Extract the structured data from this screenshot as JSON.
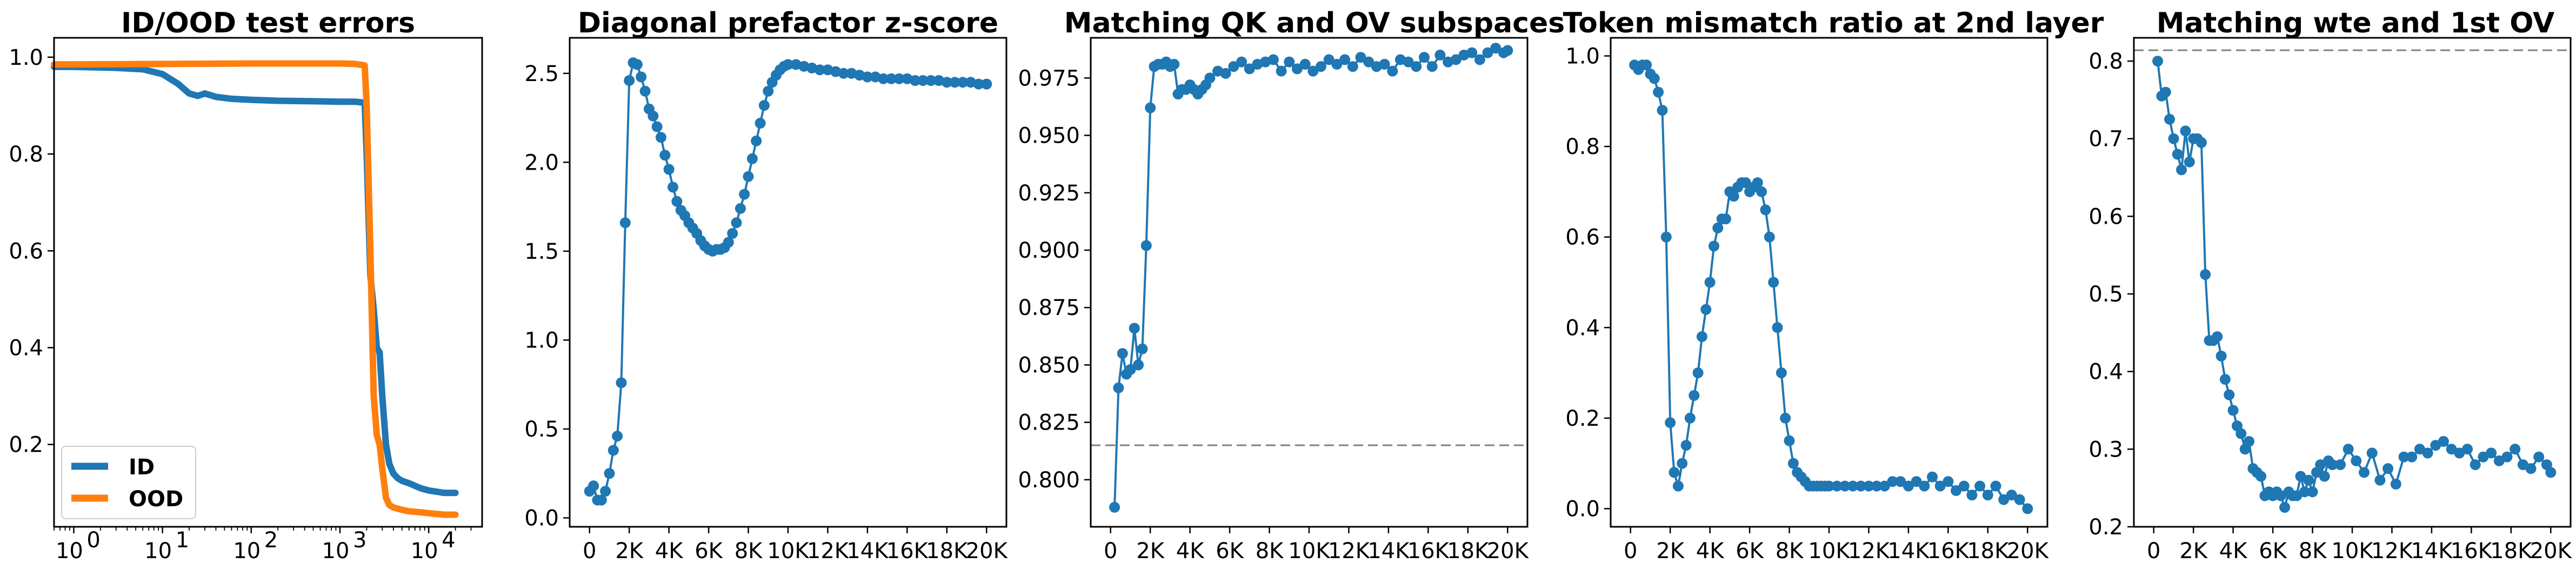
{
  "colors": {
    "blue": "#1f77b4",
    "orange": "#ff7f0e",
    "reference_line": "#808080"
  },
  "chart_data": [
    {
      "type": "line",
      "title": "ID/OOD test errors",
      "xscale": "log",
      "xlim": [
        0.6,
        40000
      ],
      "ylim": [
        0.03,
        1.04
      ],
      "xticks": [
        1,
        10,
        100,
        1000,
        10000
      ],
      "xtick_labels": [
        {
          "base": "10",
          "exp": "0"
        },
        {
          "base": "10",
          "exp": "1"
        },
        {
          "base": "10",
          "exp": "2"
        },
        {
          "base": "10",
          "exp": "3"
        },
        {
          "base": "10",
          "exp": "4"
        }
      ],
      "yticks": [
        0.2,
        0.4,
        0.6,
        0.8,
        1.0
      ],
      "ytick_labels": [
        "0.2",
        "0.4",
        "0.6",
        "0.8",
        "1.0"
      ],
      "legend": {
        "placement": "lower-left"
      },
      "series": [
        {
          "name": "ID",
          "color": "#1f77b4",
          "x": [
            0.6,
            1,
            3,
            6,
            10,
            15,
            20,
            25,
            30,
            40,
            60,
            100,
            200,
            500,
            1000,
            1500,
            1900,
            2000,
            2200,
            2400,
            2600,
            2800,
            3000,
            3300,
            3600,
            4000,
            4500,
            5000,
            6000,
            8000,
            10000,
            15000,
            20000
          ],
          "y": [
            0.98,
            0.98,
            0.978,
            0.975,
            0.965,
            0.945,
            0.925,
            0.92,
            0.925,
            0.918,
            0.914,
            0.912,
            0.91,
            0.909,
            0.908,
            0.908,
            0.906,
            0.8,
            0.55,
            0.48,
            0.4,
            0.39,
            0.3,
            0.2,
            0.16,
            0.14,
            0.13,
            0.125,
            0.12,
            0.11,
            0.105,
            0.1,
            0.1
          ]
        },
        {
          "name": "OOD",
          "color": "#ff7f0e",
          "x": [
            0.6,
            1,
            10,
            100,
            500,
            1000,
            1500,
            1900,
            2000,
            2200,
            2400,
            2600,
            2800,
            3000,
            3300,
            3600,
            4000,
            5000,
            6000,
            8000,
            10000,
            15000,
            20000
          ],
          "y": [
            0.985,
            0.985,
            0.986,
            0.987,
            0.987,
            0.987,
            0.986,
            0.983,
            0.9,
            0.6,
            0.3,
            0.22,
            0.2,
            0.15,
            0.09,
            0.075,
            0.07,
            0.065,
            0.062,
            0.06,
            0.058,
            0.055,
            0.055
          ]
        }
      ]
    },
    {
      "type": "line",
      "title": "Diagonal prefactor z-score",
      "xlim": [
        -1000,
        21000
      ],
      "ylim": [
        -0.05,
        2.7
      ],
      "xticks": [
        0,
        2000,
        4000,
        6000,
        8000,
        10000,
        12000,
        14000,
        16000,
        18000,
        20000
      ],
      "xtick_labels": [
        "0",
        "2K",
        "4K",
        "6K",
        "8K",
        "10K",
        "12K",
        "14K",
        "16K",
        "18K",
        "20K"
      ],
      "yticks": [
        0.0,
        0.5,
        1.0,
        1.5,
        2.0,
        2.5
      ],
      "ytick_labels": [
        "0.0",
        "0.5",
        "1.0",
        "1.5",
        "2.0",
        "2.5"
      ],
      "series": [
        {
          "color": "#1f77b4",
          "x": [
            0,
            200,
            400,
            600,
            800,
            1000,
            1200,
            1400,
            1600,
            1800,
            2000,
            2200,
            2400,
            2600,
            2800,
            3000,
            3200,
            3400,
            3600,
            3800,
            4000,
            4200,
            4400,
            4600,
            4800,
            5000,
            5200,
            5400,
            5600,
            5800,
            6000,
            6200,
            6400,
            6600,
            6800,
            7000,
            7200,
            7400,
            7600,
            7800,
            8000,
            8200,
            8400,
            8600,
            8800,
            9000,
            9200,
            9400,
            9600,
            9800,
            10000,
            10400,
            10800,
            11200,
            11600,
            12000,
            12400,
            12800,
            13200,
            13600,
            14000,
            14400,
            14800,
            15200,
            15600,
            16000,
            16400,
            16800,
            17200,
            17600,
            18000,
            18400,
            18800,
            19200,
            19600,
            20000
          ],
          "y": [
            0.15,
            0.18,
            0.1,
            0.1,
            0.15,
            0.25,
            0.38,
            0.46,
            0.76,
            1.66,
            2.46,
            2.56,
            2.55,
            2.48,
            2.4,
            2.3,
            2.26,
            2.2,
            2.14,
            2.04,
            1.96,
            1.86,
            1.78,
            1.73,
            1.7,
            1.66,
            1.63,
            1.6,
            1.56,
            1.53,
            1.51,
            1.5,
            1.51,
            1.51,
            1.52,
            1.55,
            1.6,
            1.66,
            1.74,
            1.82,
            1.92,
            2.02,
            2.12,
            2.22,
            2.32,
            2.4,
            2.45,
            2.49,
            2.52,
            2.54,
            2.55,
            2.55,
            2.54,
            2.53,
            2.52,
            2.52,
            2.51,
            2.5,
            2.5,
            2.49,
            2.48,
            2.48,
            2.47,
            2.47,
            2.47,
            2.47,
            2.46,
            2.46,
            2.46,
            2.46,
            2.45,
            2.45,
            2.45,
            2.45,
            2.44,
            2.44
          ]
        }
      ]
    },
    {
      "type": "line",
      "title": "Matching QK and OV subspaces",
      "xlim": [
        -1000,
        21000
      ],
      "ylim": [
        0.7795,
        0.9925
      ],
      "xticks": [
        0,
        2000,
        4000,
        6000,
        8000,
        10000,
        12000,
        14000,
        16000,
        18000,
        20000
      ],
      "xtick_labels": [
        "0",
        "2K",
        "4K",
        "6K",
        "8K",
        "10K",
        "12K",
        "14K",
        "16K",
        "18K",
        "20K"
      ],
      "yticks": [
        0.8,
        0.825,
        0.85,
        0.875,
        0.9,
        0.925,
        0.95,
        0.975
      ],
      "ytick_labels": [
        "0.800",
        "0.825",
        "0.850",
        "0.875",
        "0.900",
        "0.925",
        "0.950",
        "0.975"
      ],
      "reference_line": {
        "y": 0.815,
        "style": "dashed"
      },
      "series": [
        {
          "color": "#1f77b4",
          "x": [
            200,
            400,
            600,
            800,
            1000,
            1200,
            1400,
            1600,
            1800,
            2000,
            2200,
            2400,
            2600,
            2800,
            3000,
            3200,
            3400,
            3600,
            3800,
            4000,
            4200,
            4400,
            4600,
            4800,
            5000,
            5400,
            5800,
            6200,
            6600,
            7000,
            7400,
            7800,
            8200,
            8600,
            9000,
            9400,
            9800,
            10200,
            10600,
            11000,
            11400,
            11800,
            12200,
            12600,
            13000,
            13400,
            13800,
            14200,
            14600,
            15000,
            15400,
            15800,
            16200,
            16600,
            17000,
            17400,
            17800,
            18200,
            18600,
            19000,
            19400,
            19800,
            20000
          ],
          "y": [
            0.788,
            0.84,
            0.855,
            0.846,
            0.848,
            0.866,
            0.85,
            0.857,
            0.902,
            0.962,
            0.98,
            0.981,
            0.981,
            0.982,
            0.98,
            0.981,
            0.968,
            0.97,
            0.97,
            0.972,
            0.97,
            0.968,
            0.97,
            0.972,
            0.975,
            0.978,
            0.977,
            0.98,
            0.982,
            0.979,
            0.981,
            0.982,
            0.983,
            0.978,
            0.982,
            0.979,
            0.981,
            0.978,
            0.98,
            0.983,
            0.981,
            0.983,
            0.98,
            0.984,
            0.982,
            0.98,
            0.981,
            0.978,
            0.983,
            0.982,
            0.98,
            0.984,
            0.98,
            0.985,
            0.982,
            0.983,
            0.985,
            0.986,
            0.983,
            0.986,
            0.988,
            0.986,
            0.987
          ]
        }
      ]
    },
    {
      "type": "line",
      "title": "Token mismatch ratio at 2nd layer",
      "xlim": [
        -1000,
        21000
      ],
      "ylim": [
        -0.04,
        1.04
      ],
      "xticks": [
        0,
        2000,
        4000,
        6000,
        8000,
        10000,
        12000,
        14000,
        16000,
        18000,
        20000
      ],
      "xtick_labels": [
        "0",
        "2K",
        "4K",
        "6K",
        "8K",
        "10K",
        "12K",
        "14K",
        "16K",
        "18K",
        "20K"
      ],
      "yticks": [
        0.0,
        0.2,
        0.4,
        0.6,
        0.8,
        1.0
      ],
      "ytick_labels": [
        "0.0",
        "0.2",
        "0.4",
        "0.6",
        "0.8",
        "1.0"
      ],
      "series": [
        {
          "color": "#1f77b4",
          "x": [
            200,
            400,
            600,
            800,
            1000,
            1200,
            1400,
            1600,
            1800,
            2000,
            2200,
            2400,
            2600,
            2800,
            3000,
            3200,
            3400,
            3600,
            3800,
            4000,
            4200,
            4400,
            4600,
            4800,
            5000,
            5200,
            5400,
            5600,
            5800,
            6000,
            6200,
            6400,
            6600,
            6800,
            7000,
            7200,
            7400,
            7600,
            7800,
            8000,
            8200,
            8400,
            8600,
            8800,
            9000,
            9200,
            9400,
            9600,
            9800,
            10000,
            10400,
            10800,
            11200,
            11600,
            12000,
            12400,
            12800,
            13200,
            13600,
            14000,
            14400,
            14800,
            15200,
            15600,
            16000,
            16400,
            16800,
            17200,
            17600,
            18000,
            18400,
            18800,
            19200,
            19600,
            20000
          ],
          "y": [
            0.98,
            0.97,
            0.98,
            0.98,
            0.96,
            0.95,
            0.92,
            0.88,
            0.6,
            0.19,
            0.08,
            0.05,
            0.1,
            0.14,
            0.2,
            0.25,
            0.3,
            0.38,
            0.44,
            0.5,
            0.58,
            0.62,
            0.64,
            0.64,
            0.7,
            0.69,
            0.71,
            0.72,
            0.72,
            0.7,
            0.71,
            0.72,
            0.7,
            0.66,
            0.6,
            0.5,
            0.4,
            0.3,
            0.2,
            0.15,
            0.1,
            0.08,
            0.07,
            0.06,
            0.05,
            0.05,
            0.05,
            0.05,
            0.05,
            0.05,
            0.05,
            0.05,
            0.05,
            0.05,
            0.05,
            0.05,
            0.05,
            0.06,
            0.06,
            0.05,
            0.06,
            0.05,
            0.07,
            0.05,
            0.06,
            0.04,
            0.05,
            0.03,
            0.05,
            0.03,
            0.05,
            0.02,
            0.03,
            0.02,
            0.0
          ]
        }
      ]
    },
    {
      "type": "line",
      "title": "Matching wte and 1st OV",
      "xlim": [
        -1000,
        21000
      ],
      "ylim": [
        0.2,
        0.83
      ],
      "xticks": [
        0,
        2000,
        4000,
        6000,
        8000,
        10000,
        12000,
        14000,
        16000,
        18000,
        20000
      ],
      "xtick_labels": [
        "0",
        "2K",
        "4K",
        "6K",
        "8K",
        "10K",
        "12K",
        "14K",
        "16K",
        "18K",
        "20K"
      ],
      "yticks": [
        0.2,
        0.3,
        0.4,
        0.5,
        0.6,
        0.7,
        0.8
      ],
      "ytick_labels": [
        "0.2",
        "0.3",
        "0.4",
        "0.5",
        "0.6",
        "0.7",
        "0.8"
      ],
      "reference_line": {
        "y": 0.814,
        "style": "dashed"
      },
      "series": [
        {
          "color": "#1f77b4",
          "x": [
            200,
            400,
            600,
            800,
            1000,
            1200,
            1400,
            1600,
            1800,
            2000,
            2200,
            2400,
            2600,
            2800,
            3000,
            3200,
            3400,
            3600,
            3800,
            4000,
            4200,
            4400,
            4600,
            4800,
            5000,
            5200,
            5400,
            5600,
            5800,
            6000,
            6200,
            6400,
            6600,
            6800,
            7000,
            7200,
            7400,
            7600,
            7800,
            8000,
            8200,
            8400,
            8600,
            8800,
            9000,
            9400,
            9800,
            10200,
            10600,
            11000,
            11400,
            11800,
            12200,
            12600,
            13000,
            13400,
            13800,
            14200,
            14600,
            15000,
            15400,
            15800,
            16200,
            16600,
            17000,
            17400,
            17800,
            18200,
            18600,
            19000,
            19400,
            19800,
            20000
          ],
          "y": [
            0.8,
            0.755,
            0.76,
            0.725,
            0.7,
            0.68,
            0.66,
            0.71,
            0.67,
            0.7,
            0.7,
            0.695,
            0.525,
            0.44,
            0.44,
            0.445,
            0.42,
            0.39,
            0.37,
            0.35,
            0.33,
            0.32,
            0.3,
            0.31,
            0.275,
            0.27,
            0.265,
            0.24,
            0.245,
            0.24,
            0.245,
            0.24,
            0.225,
            0.245,
            0.24,
            0.24,
            0.265,
            0.245,
            0.26,
            0.245,
            0.27,
            0.28,
            0.265,
            0.285,
            0.28,
            0.28,
            0.3,
            0.285,
            0.27,
            0.295,
            0.26,
            0.275,
            0.255,
            0.29,
            0.29,
            0.3,
            0.295,
            0.305,
            0.31,
            0.3,
            0.295,
            0.3,
            0.28,
            0.29,
            0.295,
            0.285,
            0.29,
            0.3,
            0.28,
            0.275,
            0.29,
            0.28,
            0.27
          ]
        }
      ]
    }
  ]
}
